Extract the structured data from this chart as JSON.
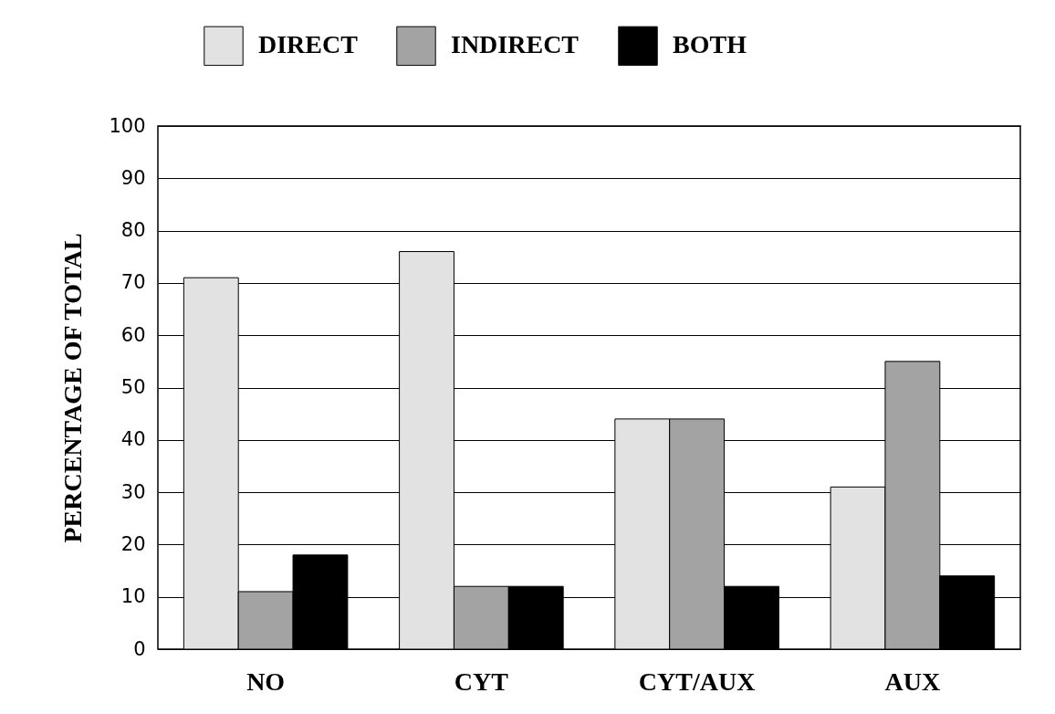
{
  "chart_data": {
    "type": "bar",
    "ylabel": "PERCENTAGE OF TOTAL",
    "categories": [
      "NO",
      "CYT",
      "CYT/AUX",
      "AUX"
    ],
    "series": [
      {
        "name": "DIRECT",
        "color": "#e2e2e2",
        "values": [
          71,
          76,
          44,
          31
        ]
      },
      {
        "name": "INDIRECT",
        "color": "#a3a3a3",
        "values": [
          11,
          12,
          44,
          55
        ]
      },
      {
        "name": "BOTH",
        "color": "#000000",
        "values": [
          18,
          12,
          12,
          14
        ]
      }
    ],
    "ylim": [
      0,
      100
    ],
    "yticks": [
      0,
      10,
      20,
      30,
      40,
      50,
      60,
      70,
      80,
      90,
      100
    ],
    "grid": true,
    "legend": "top"
  }
}
